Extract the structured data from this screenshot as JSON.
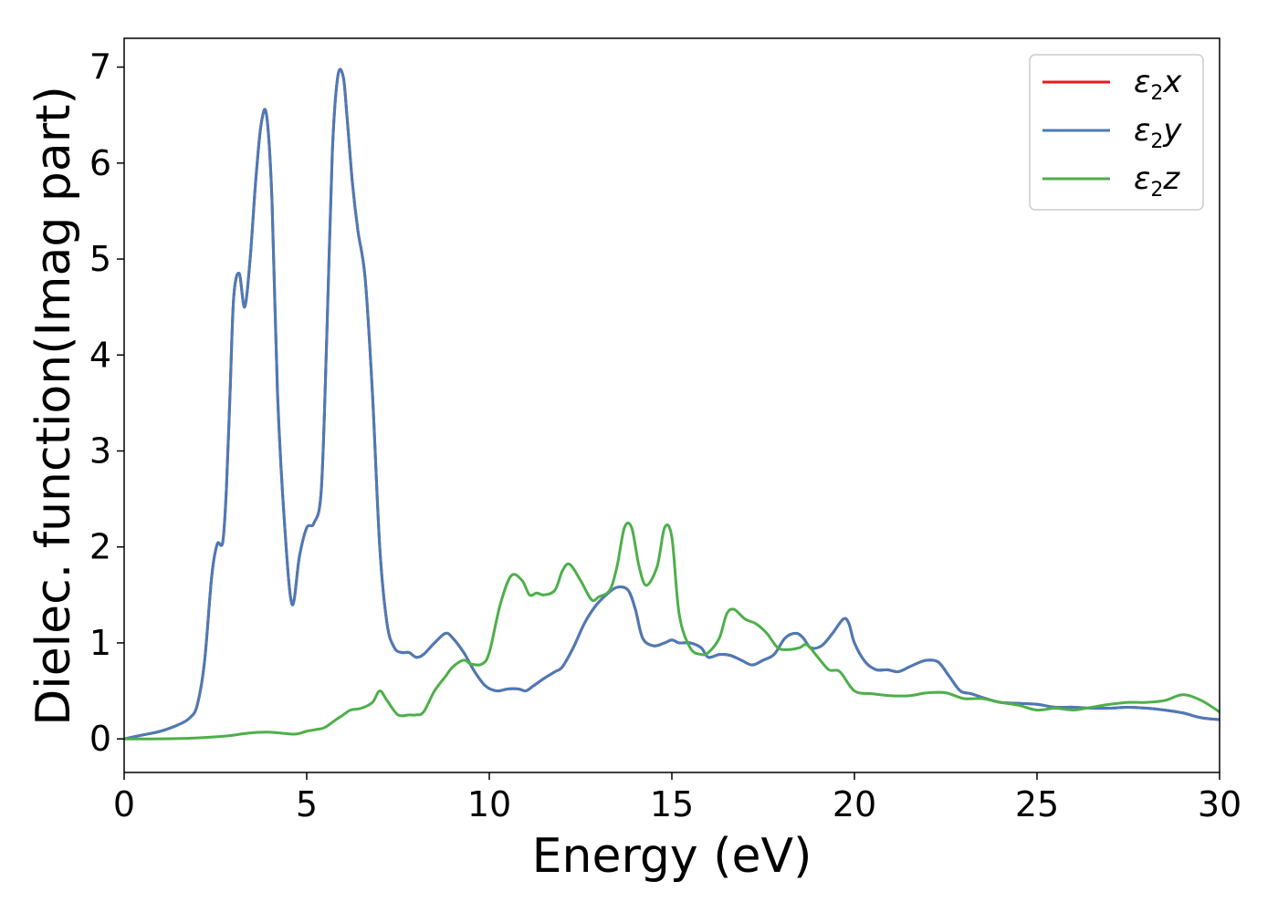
{
  "chart_data": {
    "type": "line",
    "xlabel": "Energy (eV)",
    "ylabel": "Dielec. function(Imag part)",
    "xlim": [
      0,
      30
    ],
    "ylim": [
      -0.35,
      7.3
    ],
    "xticks": [
      0,
      5,
      10,
      15,
      20,
      25,
      30
    ],
    "yticks": [
      0,
      1,
      2,
      3,
      4,
      5,
      6,
      7
    ],
    "grid": false,
    "legend_position": "top-right",
    "series": [
      {
        "name": "ε2x",
        "color": "#e41a1c",
        "x": [
          0,
          0.5,
          1,
          1.5,
          1.8,
          2.0,
          2.2,
          2.4,
          2.55,
          2.7,
          2.8,
          2.9,
          3.0,
          3.15,
          3.3,
          3.45,
          3.6,
          3.75,
          3.9,
          4.05,
          4.2,
          4.4,
          4.6,
          4.8,
          5.0,
          5.2,
          5.4,
          5.55,
          5.7,
          5.85,
          6.0,
          6.1,
          6.25,
          6.4,
          6.6,
          6.8,
          7.0,
          7.2,
          7.4,
          7.6,
          7.8,
          8.0,
          8.2,
          8.5,
          8.8,
          9.0,
          9.3,
          9.6,
          9.9,
          10.2,
          10.5,
          10.8,
          11.0,
          11.2,
          11.5,
          11.8,
          12.0,
          12.3,
          12.6,
          12.9,
          13.2,
          13.5,
          13.8,
          14.0,
          14.2,
          14.5,
          14.8,
          15.0,
          15.2,
          15.5,
          15.8,
          16.0,
          16.3,
          16.6,
          16.9,
          17.2,
          17.5,
          17.8,
          18.1,
          18.4,
          18.6,
          18.8,
          19.1,
          19.4,
          19.7,
          19.85,
          20.0,
          20.3,
          20.6,
          20.9,
          21.2,
          21.5,
          21.8,
          22.0,
          22.3,
          22.6,
          22.9,
          23.2,
          23.6,
          24.0,
          24.5,
          25.0,
          25.5,
          26.0,
          26.5,
          27.0,
          27.5,
          28.0,
          28.5,
          29.0,
          29.5,
          30.0
        ],
        "y": [
          0,
          0.04,
          0.08,
          0.15,
          0.22,
          0.35,
          0.8,
          1.7,
          2.03,
          2.05,
          2.6,
          3.6,
          4.6,
          4.85,
          4.5,
          5.0,
          5.8,
          6.4,
          6.5,
          5.6,
          3.6,
          2.2,
          1.4,
          1.9,
          2.2,
          2.25,
          2.6,
          4.2,
          6.1,
          6.9,
          6.9,
          6.5,
          5.8,
          5.3,
          4.8,
          3.6,
          2.0,
          1.2,
          0.95,
          0.9,
          0.9,
          0.85,
          0.88,
          1.0,
          1.1,
          1.05,
          0.9,
          0.7,
          0.55,
          0.5,
          0.52,
          0.52,
          0.5,
          0.55,
          0.63,
          0.7,
          0.75,
          0.95,
          1.2,
          1.38,
          1.5,
          1.58,
          1.55,
          1.35,
          1.05,
          0.97,
          1.0,
          1.03,
          1.0,
          1.0,
          0.95,
          0.85,
          0.88,
          0.87,
          0.82,
          0.77,
          0.82,
          0.88,
          1.05,
          1.1,
          1.05,
          0.95,
          0.97,
          1.1,
          1.25,
          1.2,
          1.0,
          0.8,
          0.72,
          0.72,
          0.7,
          0.75,
          0.8,
          0.82,
          0.8,
          0.65,
          0.5,
          0.47,
          0.42,
          0.38,
          0.37,
          0.36,
          0.33,
          0.33,
          0.32,
          0.32,
          0.33,
          0.32,
          0.3,
          0.27,
          0.22,
          0.2
        ]
      },
      {
        "name": "ε2y",
        "color": "#4a7bb7",
        "x": [
          0,
          0.5,
          1,
          1.5,
          1.8,
          2.0,
          2.2,
          2.4,
          2.55,
          2.7,
          2.8,
          2.9,
          3.0,
          3.15,
          3.3,
          3.45,
          3.6,
          3.75,
          3.9,
          4.05,
          4.2,
          4.4,
          4.6,
          4.8,
          5.0,
          5.2,
          5.4,
          5.55,
          5.7,
          5.85,
          6.0,
          6.1,
          6.25,
          6.4,
          6.6,
          6.8,
          7.0,
          7.2,
          7.4,
          7.6,
          7.8,
          8.0,
          8.2,
          8.5,
          8.8,
          9.0,
          9.3,
          9.6,
          9.9,
          10.2,
          10.5,
          10.8,
          11.0,
          11.2,
          11.5,
          11.8,
          12.0,
          12.3,
          12.6,
          12.9,
          13.2,
          13.5,
          13.8,
          14.0,
          14.2,
          14.5,
          14.8,
          15.0,
          15.2,
          15.5,
          15.8,
          16.0,
          16.3,
          16.6,
          16.9,
          17.2,
          17.5,
          17.8,
          18.1,
          18.4,
          18.6,
          18.8,
          19.1,
          19.4,
          19.7,
          19.85,
          20.0,
          20.3,
          20.6,
          20.9,
          21.2,
          21.5,
          21.8,
          22.0,
          22.3,
          22.6,
          22.9,
          23.2,
          23.6,
          24.0,
          24.5,
          25.0,
          25.5,
          26.0,
          26.5,
          27.0,
          27.5,
          28.0,
          28.5,
          29.0,
          29.5,
          30.0
        ],
        "y": [
          0,
          0.04,
          0.08,
          0.15,
          0.22,
          0.35,
          0.8,
          1.7,
          2.03,
          2.05,
          2.6,
          3.6,
          4.6,
          4.85,
          4.5,
          5.0,
          5.8,
          6.4,
          6.5,
          5.6,
          3.6,
          2.2,
          1.4,
          1.9,
          2.2,
          2.25,
          2.6,
          4.2,
          6.1,
          6.9,
          6.9,
          6.5,
          5.8,
          5.3,
          4.8,
          3.6,
          2.0,
          1.2,
          0.95,
          0.9,
          0.9,
          0.85,
          0.88,
          1.0,
          1.1,
          1.05,
          0.9,
          0.7,
          0.55,
          0.5,
          0.52,
          0.52,
          0.5,
          0.55,
          0.63,
          0.7,
          0.75,
          0.95,
          1.2,
          1.38,
          1.5,
          1.58,
          1.55,
          1.35,
          1.05,
          0.97,
          1.0,
          1.03,
          1.0,
          1.0,
          0.95,
          0.85,
          0.88,
          0.87,
          0.82,
          0.77,
          0.82,
          0.88,
          1.05,
          1.1,
          1.05,
          0.95,
          0.97,
          1.1,
          1.25,
          1.2,
          1.0,
          0.8,
          0.72,
          0.72,
          0.7,
          0.75,
          0.8,
          0.82,
          0.8,
          0.65,
          0.5,
          0.47,
          0.42,
          0.38,
          0.37,
          0.36,
          0.33,
          0.33,
          0.32,
          0.32,
          0.33,
          0.32,
          0.3,
          0.27,
          0.22,
          0.2
        ]
      },
      {
        "name": "ε2z",
        "color": "#4daf4a",
        "x": [
          0,
          1,
          2,
          2.8,
          3.4,
          3.9,
          4.3,
          4.7,
          5.0,
          5.3,
          5.5,
          5.8,
          6.0,
          6.2,
          6.5,
          6.8,
          7.0,
          7.2,
          7.5,
          7.8,
          8.0,
          8.2,
          8.5,
          8.8,
          9.0,
          9.3,
          9.5,
          9.8,
          10.0,
          10.3,
          10.6,
          10.9,
          11.1,
          11.3,
          11.5,
          11.8,
          12.0,
          12.2,
          12.5,
          12.8,
          13.0,
          13.3,
          13.5,
          13.7,
          13.9,
          14.1,
          14.3,
          14.6,
          14.8,
          15.0,
          15.2,
          15.5,
          15.8,
          16.0,
          16.3,
          16.5,
          16.7,
          17.0,
          17.3,
          17.6,
          17.9,
          18.2,
          18.5,
          18.7,
          19.0,
          19.3,
          19.6,
          20.0,
          20.5,
          21.0,
          21.5,
          22.0,
          22.5,
          23.0,
          23.5,
          24.0,
          24.5,
          25.0,
          25.5,
          26.0,
          26.5,
          27.0,
          27.5,
          28.0,
          28.5,
          29.0,
          29.5,
          30.0
        ],
        "y": [
          0,
          0,
          0.01,
          0.03,
          0.06,
          0.07,
          0.06,
          0.05,
          0.08,
          0.1,
          0.12,
          0.2,
          0.25,
          0.3,
          0.32,
          0.38,
          0.5,
          0.4,
          0.25,
          0.25,
          0.25,
          0.28,
          0.5,
          0.65,
          0.75,
          0.82,
          0.78,
          0.78,
          0.9,
          1.4,
          1.7,
          1.65,
          1.5,
          1.52,
          1.5,
          1.55,
          1.75,
          1.82,
          1.65,
          1.45,
          1.48,
          1.55,
          1.8,
          2.2,
          2.2,
          1.8,
          1.6,
          1.8,
          2.2,
          2.1,
          1.3,
          0.95,
          0.88,
          0.9,
          1.05,
          1.3,
          1.35,
          1.25,
          1.2,
          1.1,
          0.95,
          0.93,
          0.95,
          0.98,
          0.85,
          0.72,
          0.7,
          0.5,
          0.47,
          0.45,
          0.45,
          0.48,
          0.48,
          0.42,
          0.42,
          0.38,
          0.35,
          0.3,
          0.32,
          0.3,
          0.33,
          0.36,
          0.38,
          0.38,
          0.4,
          0.46,
          0.4,
          0.28
        ]
      }
    ]
  }
}
